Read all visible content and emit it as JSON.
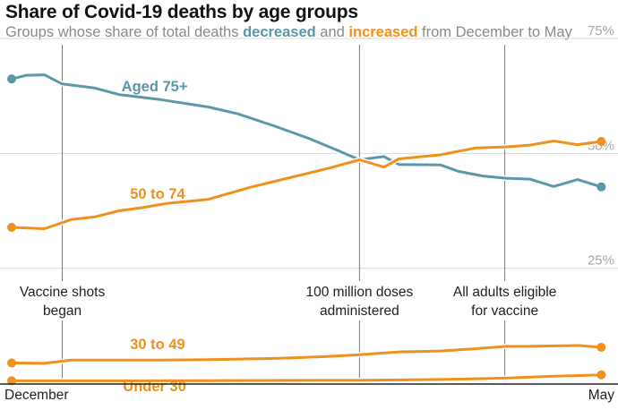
{
  "title": "Share of Covid-19 deaths by age groups",
  "subtitle": {
    "part1": "Groups whose share of total deaths ",
    "decreased": "decreased",
    "part2": " and ",
    "increased": "increased",
    "part3": " from December to May"
  },
  "colors": {
    "decreased": "#5c97a8",
    "increased": "#f0901d",
    "gridline": "#d9d9d9",
    "annotation_line": "#7a7a7a",
    "axis": "#222222"
  },
  "chart_data": {
    "type": "line",
    "title": "Share of Covid-19 deaths by age groups",
    "x_labels": [
      "December",
      "May"
    ],
    "y_ticks": [
      {
        "value": 75,
        "label": "75%"
      },
      {
        "value": 50,
        "label": "50%"
      },
      {
        "value": 25,
        "label": "25%"
      }
    ],
    "ylim": [
      0,
      75
    ],
    "x_range": [
      0,
      1
    ],
    "annotations": [
      {
        "x": 0.085,
        "lines": [
          "Vaccine shots",
          "began"
        ]
      },
      {
        "x": 0.584,
        "lines": [
          "100 million doses",
          "administered"
        ]
      },
      {
        "x": 0.828,
        "lines": [
          "All adults eligible",
          "for vaccine"
        ]
      }
    ],
    "series": [
      {
        "name": "Aged 75+",
        "label": "Aged 75+",
        "trend": "decreased",
        "label_x": 0.24,
        "label_y": 63.5,
        "points": [
          [
            0,
            66.2
          ],
          [
            0.025,
            67
          ],
          [
            0.055,
            67.1
          ],
          [
            0.085,
            65.1
          ],
          [
            0.14,
            64.2
          ],
          [
            0.18,
            62.8
          ],
          [
            0.25,
            61.7
          ],
          [
            0.33,
            60.1
          ],
          [
            0.38,
            58.6
          ],
          [
            0.44,
            56
          ],
          [
            0.5,
            53.2
          ],
          [
            0.55,
            50.5
          ],
          [
            0.584,
            48.6
          ],
          [
            0.625,
            49.3
          ],
          [
            0.65,
            47.6
          ],
          [
            0.72,
            47.5
          ],
          [
            0.75,
            46.1
          ],
          [
            0.79,
            45.1
          ],
          [
            0.83,
            44.6
          ],
          [
            0.87,
            44.4
          ],
          [
            0.91,
            42.8
          ],
          [
            0.95,
            44.3
          ],
          [
            0.99,
            42.7
          ]
        ]
      },
      {
        "name": "50 to 74",
        "label": "50 to 74",
        "trend": "increased",
        "label_x": 0.245,
        "label_y": 40.1,
        "points": [
          [
            0,
            33.9
          ],
          [
            0.055,
            33.6
          ],
          [
            0.1,
            35.6
          ],
          [
            0.14,
            36.2
          ],
          [
            0.18,
            37.5
          ],
          [
            0.22,
            38.2
          ],
          [
            0.26,
            39.1
          ],
          [
            0.33,
            40
          ],
          [
            0.4,
            42.6
          ],
          [
            0.47,
            44.8
          ],
          [
            0.53,
            46.7
          ],
          [
            0.584,
            48.6
          ],
          [
            0.625,
            47
          ],
          [
            0.65,
            48.8
          ],
          [
            0.72,
            49.7
          ],
          [
            0.78,
            51.2
          ],
          [
            0.83,
            51.4
          ],
          [
            0.87,
            51.8
          ],
          [
            0.91,
            52.7
          ],
          [
            0.95,
            51.9
          ],
          [
            0.99,
            52.6
          ]
        ]
      },
      {
        "name": "30 to 49",
        "label": "30 to 49",
        "trend": "increased",
        "label_x": 0.245,
        "label_y": 7.4,
        "points": [
          [
            0,
            4.4
          ],
          [
            0.055,
            4.3
          ],
          [
            0.1,
            5
          ],
          [
            0.15,
            5
          ],
          [
            0.25,
            5
          ],
          [
            0.33,
            5.1
          ],
          [
            0.45,
            5.4
          ],
          [
            0.53,
            5.8
          ],
          [
            0.584,
            6.2
          ],
          [
            0.65,
            6.8
          ],
          [
            0.72,
            7
          ],
          [
            0.78,
            7.5
          ],
          [
            0.83,
            8
          ],
          [
            0.87,
            8
          ],
          [
            0.91,
            8.1
          ],
          [
            0.95,
            8.2
          ],
          [
            0.99,
            7.8
          ]
        ]
      },
      {
        "name": "Under 30",
        "label": "Under 30",
        "trend": "increased",
        "label_x": 0.24,
        "label_y": -1.8,
        "points": [
          [
            0,
            0.5
          ],
          [
            0.15,
            0.5
          ],
          [
            0.33,
            0.55
          ],
          [
            0.5,
            0.6
          ],
          [
            0.584,
            0.6
          ],
          [
            0.72,
            0.8
          ],
          [
            0.83,
            1.1
          ],
          [
            0.91,
            1.5
          ],
          [
            0.99,
            1.8
          ]
        ]
      }
    ]
  }
}
